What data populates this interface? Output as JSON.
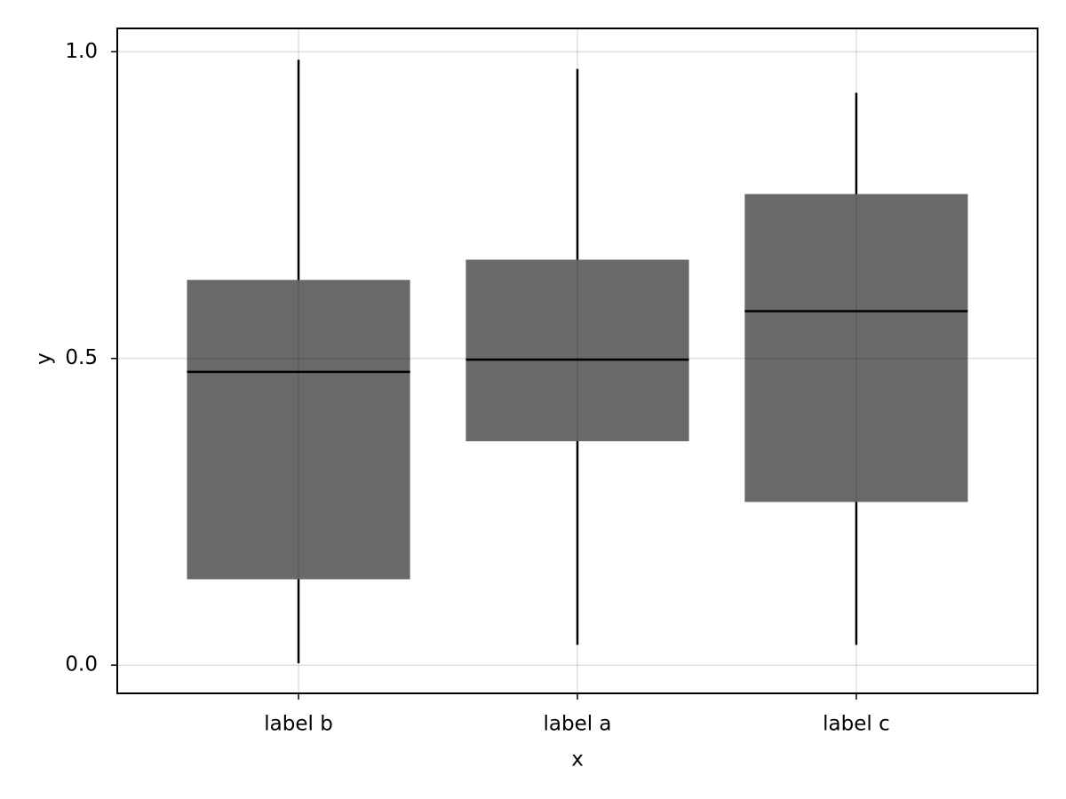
{
  "chart_data": {
    "type": "box",
    "xlabel": "x",
    "ylabel": "y",
    "categories": [
      "label b",
      "label a",
      "label c"
    ],
    "boxes": [
      {
        "min": 0.003,
        "q1": 0.14,
        "median": 0.478,
        "q3": 0.628,
        "max": 0.987
      },
      {
        "min": 0.033,
        "q1": 0.365,
        "median": 0.498,
        "q3": 0.661,
        "max": 0.972
      },
      {
        "min": 0.033,
        "q1": 0.266,
        "median": 0.577,
        "q3": 0.768,
        "max": 0.933
      }
    ],
    "color": "#696969",
    "ylim": [
      -0.046,
      1.038
    ],
    "yticks": [
      {
        "value": 0,
        "label": "0.0"
      },
      {
        "value": 0.5,
        "label": "0.5"
      },
      {
        "value": 1,
        "label": "1.0"
      }
    ],
    "grid": true
  }
}
